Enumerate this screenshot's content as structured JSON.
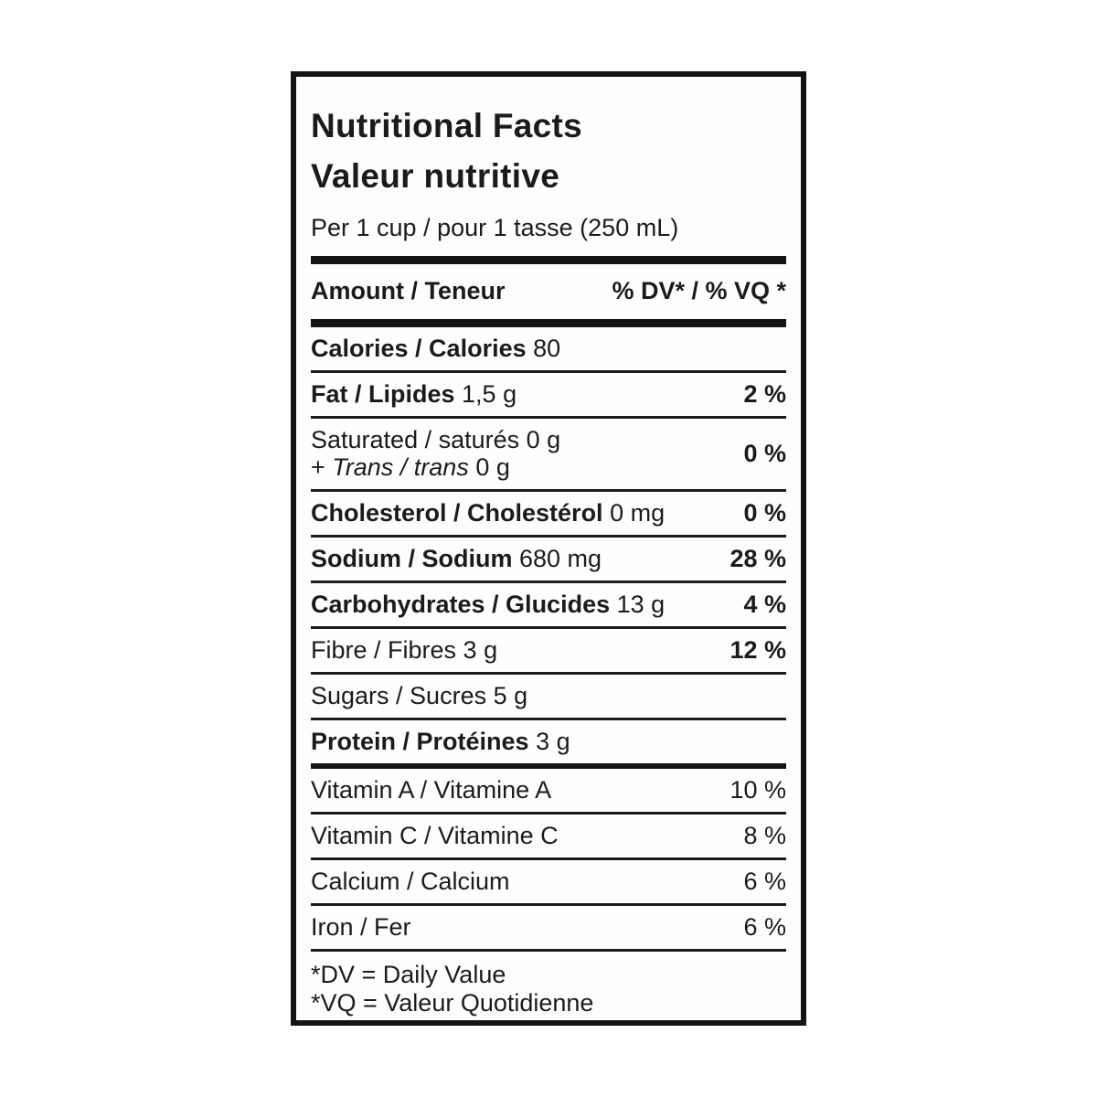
{
  "label": {
    "title_en": "Nutritional Facts",
    "title_fr": "Valeur nutritive",
    "serving": "Per 1 cup / pour 1 tasse (250 mL)",
    "columns": {
      "amount": "Amount / Teneur",
      "daily_value": "% DV* / % VQ *"
    },
    "rows": [
      {
        "name": "Calories / Calories",
        "bold": true,
        "value": "80",
        "dv": "",
        "dv_bold": false
      },
      {
        "name": "Fat / Lipides",
        "bold": true,
        "value": "1,5 g",
        "dv": "2 %",
        "dv_bold": true
      },
      {
        "name": "Saturated / saturés",
        "bold": false,
        "value": "0 g",
        "dv": "0 %",
        "dv_bold": true,
        "line2_prefix": "+ ",
        "line2_italic": "Trans / trans",
        "line2_suffix": " 0 g"
      },
      {
        "name": "Cholesterol / Cholestérol",
        "bold": true,
        "value": "0 mg",
        "dv": "0 %",
        "dv_bold": true
      },
      {
        "name": "Sodium / Sodium",
        "bold": true,
        "value": "680 mg",
        "dv": "28 %",
        "dv_bold": true
      },
      {
        "name": "Carbohydrates / Glucides",
        "bold": true,
        "value": "13 g",
        "dv": "4 %",
        "dv_bold": true
      },
      {
        "name": "Fibre / Fibres",
        "bold": false,
        "value": "3 g",
        "dv": "12 %",
        "dv_bold": true
      },
      {
        "name": "Sugars / Sucres",
        "bold": false,
        "value": "5 g",
        "dv": "",
        "dv_bold": false
      },
      {
        "name": "Protein / Protéines",
        "bold": true,
        "value": "3 g",
        "dv": "",
        "dv_bold": false
      },
      {
        "name": "Vitamin A / Vitamine A",
        "bold": false,
        "value": "",
        "dv": "10 %",
        "dv_bold": false,
        "thick_before": true
      },
      {
        "name": "Vitamin C / Vitamine C",
        "bold": false,
        "value": "",
        "dv": "8 %",
        "dv_bold": false
      },
      {
        "name": "Calcium / Calcium",
        "bold": false,
        "value": "",
        "dv": "6 %",
        "dv_bold": false
      },
      {
        "name": "Iron / Fer",
        "bold": false,
        "value": "",
        "dv": "6 %",
        "dv_bold": false
      }
    ],
    "footnotes": [
      "*DV = Daily Value",
      "*VQ = Valeur Quotidienne"
    ]
  },
  "colors": {
    "text": "#1b1b1b",
    "rule": "#141414",
    "background": "#ffffff"
  }
}
